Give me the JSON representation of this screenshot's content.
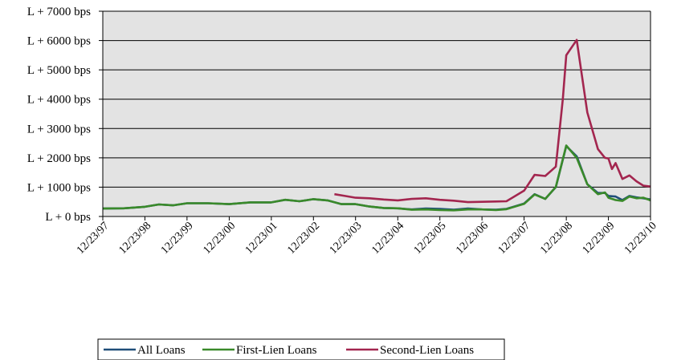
{
  "chart_data": {
    "type": "line",
    "title": "",
    "xlabel": "",
    "ylabel": "",
    "ylim": [
      0,
      7000
    ],
    "y_ticks": [
      0,
      1000,
      2000,
      3000,
      4000,
      5000,
      6000,
      7000
    ],
    "y_tick_labels": [
      "L + 0 bps",
      "L + 1000 bps",
      "L + 2000 bps",
      "L + 3000 bps",
      "L + 4000 bps",
      "L + 5000 bps",
      "L + 6000 bps",
      "L + 7000 bps"
    ],
    "x_tick_labels": [
      "12/23/97",
      "12/23/98",
      "12/23/99",
      "12/23/00",
      "12/23/01",
      "12/23/02",
      "12/23/03",
      "12/23/04",
      "12/23/05",
      "12/23/06",
      "12/23/07",
      "12/23/08",
      "12/23/09",
      "12/23/10"
    ],
    "x_tick_dates": [
      "1997-12-23",
      "1998-12-23",
      "1999-12-23",
      "2000-12-23",
      "2001-12-23",
      "2002-12-23",
      "2003-12-23",
      "2004-12-23",
      "2005-12-23",
      "2006-12-23",
      "2007-12-23",
      "2008-12-23",
      "2009-12-23",
      "2010-12-23"
    ],
    "xlim": [
      "1997-12-23",
      "2010-12-23"
    ],
    "grid": "horizontal",
    "plot_background": "#e3e3e3",
    "legend_position": "bottom",
    "series": [
      {
        "name": "All Loans",
        "color": "#1f4e79",
        "x": [
          "1997-12-23",
          "1998-06-23",
          "1998-12-23",
          "1999-04-23",
          "1999-08-23",
          "1999-12-23",
          "2000-06-23",
          "2000-12-23",
          "2001-06-23",
          "2001-12-23",
          "2002-04-23",
          "2002-08-23",
          "2002-12-23",
          "2003-04-23",
          "2003-08-23",
          "2003-12-23",
          "2004-04-23",
          "2004-08-23",
          "2004-12-23",
          "2005-04-23",
          "2005-08-23",
          "2005-12-23",
          "2006-04-23",
          "2006-08-23",
          "2006-12-23",
          "2007-04-23",
          "2007-07-23",
          "2007-12-23",
          "2008-03-23",
          "2008-06-23",
          "2008-09-23",
          "2008-12-23",
          "2009-03-23",
          "2009-06-23",
          "2009-09-23",
          "2009-11-23",
          "2009-12-23",
          "2010-02-23",
          "2010-04-23",
          "2010-06-23",
          "2010-08-23",
          "2010-10-23",
          "2010-12-23"
        ],
        "values": [
          270,
          280,
          330,
          410,
          380,
          450,
          450,
          420,
          480,
          480,
          570,
          520,
          590,
          550,
          420,
          420,
          340,
          290,
          280,
          240,
          270,
          260,
          230,
          270,
          240,
          230,
          260,
          440,
          760,
          600,
          1000,
          2400,
          2050,
          1100,
          800,
          800,
          700,
          680,
          560,
          700,
          650,
          620,
          580
        ]
      },
      {
        "name": "First-Lien Loans",
        "color": "#3a8a2a",
        "x": [
          "1997-12-23",
          "1998-06-23",
          "1998-12-23",
          "1999-04-23",
          "1999-08-23",
          "1999-12-23",
          "2000-06-23",
          "2000-12-23",
          "2001-06-23",
          "2001-12-23",
          "2002-04-23",
          "2002-08-23",
          "2002-12-23",
          "2003-04-23",
          "2003-08-23",
          "2003-12-23",
          "2004-04-23",
          "2004-08-23",
          "2004-12-23",
          "2005-04-23",
          "2005-08-23",
          "2005-12-23",
          "2006-04-23",
          "2006-08-23",
          "2006-12-23",
          "2007-04-23",
          "2007-07-23",
          "2007-12-23",
          "2008-03-23",
          "2008-06-23",
          "2008-09-23",
          "2008-12-23",
          "2009-03-23",
          "2009-06-23",
          "2009-09-23",
          "2009-11-23",
          "2009-12-23",
          "2010-02-23",
          "2010-04-23",
          "2010-06-23",
          "2010-08-23",
          "2010-10-23",
          "2010-12-23"
        ],
        "values": [
          270,
          280,
          330,
          410,
          380,
          450,
          450,
          420,
          480,
          480,
          570,
          520,
          590,
          550,
          420,
          420,
          340,
          290,
          280,
          230,
          240,
          220,
          210,
          240,
          240,
          220,
          250,
          430,
          750,
          600,
          1010,
          2420,
          2000,
          1100,
          760,
          820,
          640,
          560,
          530,
          680,
          620,
          640,
          550
        ]
      },
      {
        "name": "Second-Lien Loans",
        "color": "#a3264f",
        "x": [
          "2003-06-23",
          "2003-09-23",
          "2003-12-23",
          "2004-04-23",
          "2004-08-23",
          "2004-12-23",
          "2005-04-23",
          "2005-08-23",
          "2005-12-23",
          "2006-04-23",
          "2006-08-23",
          "2006-12-23",
          "2007-04-23",
          "2007-07-23",
          "2007-12-23",
          "2008-03-23",
          "2008-06-23",
          "2008-09-23",
          "2008-11-23",
          "2008-12-23",
          "2009-03-23",
          "2009-06-23",
          "2009-09-23",
          "2009-11-23",
          "2009-12-23",
          "2010-01-23",
          "2010-02-23",
          "2010-04-23",
          "2010-06-23",
          "2010-08-23",
          "2010-10-23",
          "2010-12-23"
        ],
        "values": [
          760,
          700,
          640,
          620,
          580,
          550,
          600,
          620,
          570,
          540,
          490,
          500,
          510,
          520,
          880,
          1420,
          1380,
          1700,
          4000,
          5500,
          6020,
          3550,
          2300,
          2000,
          1980,
          1620,
          1820,
          1280,
          1400,
          1200,
          1050,
          1020
        ]
      }
    ]
  }
}
